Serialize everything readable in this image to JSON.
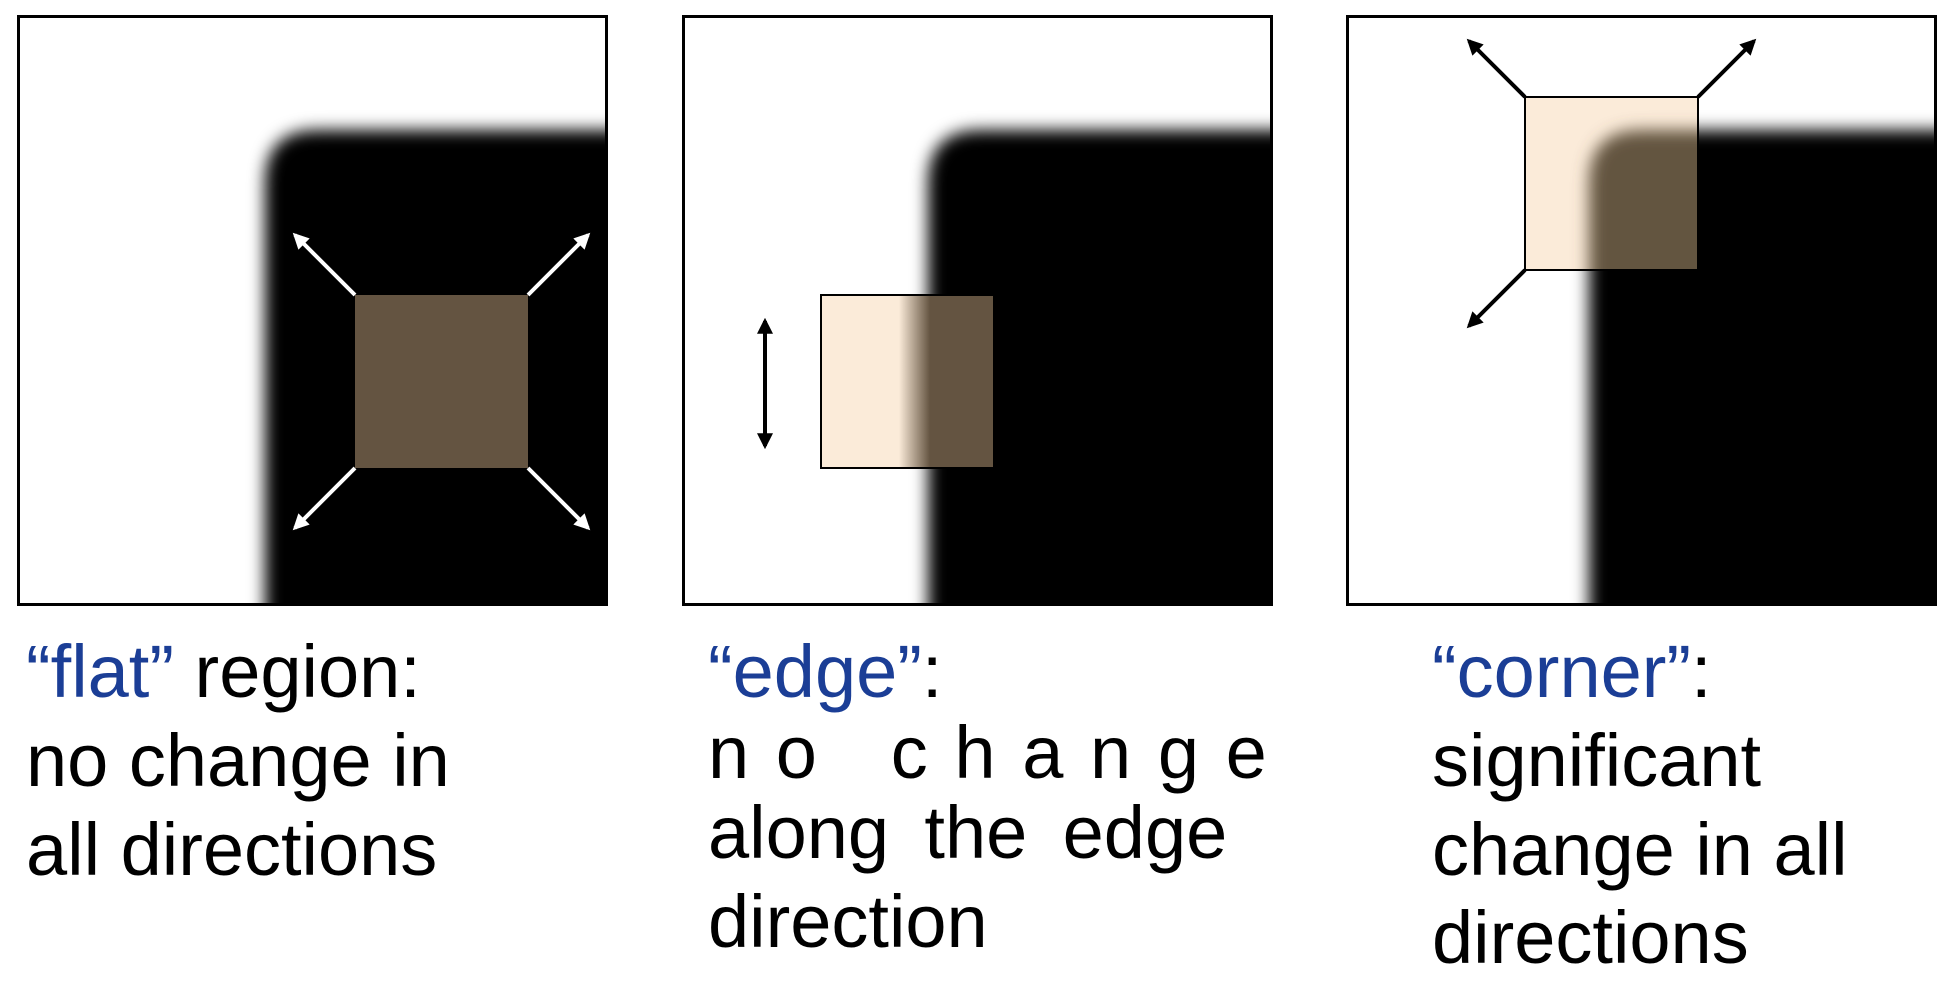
{
  "colors": {
    "accent_term": "#1b3e96",
    "window_dark": "#645441",
    "window_light": "#fbebd9",
    "shape": "#000000"
  },
  "panels": [
    {
      "id": "flat",
      "term": "“flat”",
      "rest": " region:",
      "lines": [
        "no change in",
        "all directions"
      ],
      "arrow_style": "white-diagonal"
    },
    {
      "id": "edge",
      "term": "“edge”",
      "rest": ":",
      "lines": [
        "no change",
        "along the edge",
        "direction"
      ],
      "arrow_style": "black-vertical"
    },
    {
      "id": "corner",
      "term": "“corner”",
      "rest": ":",
      "lines": [
        "significant",
        "change in all",
        "directions"
      ],
      "arrow_style": "black-diagonal"
    }
  ]
}
